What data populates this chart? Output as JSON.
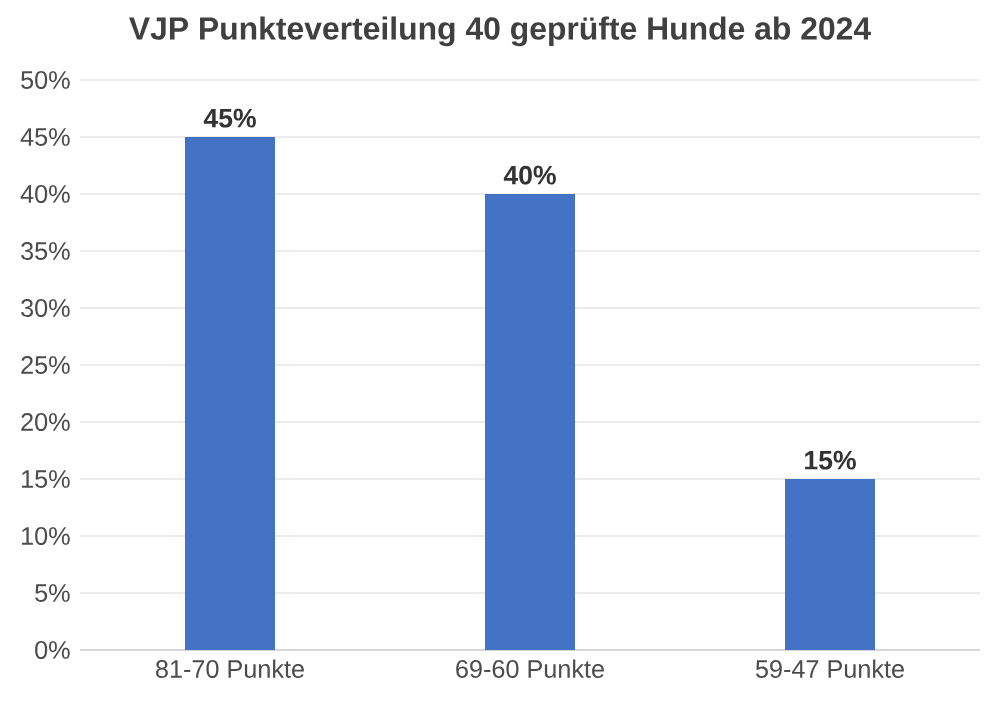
{
  "chart_data": {
    "type": "bar",
    "title": "VJP Punkteverteilung 40 geprüfte Hunde ab 2024",
    "categories": [
      "81-70 Punkte",
      "69-60 Punkte",
      "59-47 Punkte"
    ],
    "values": [
      45,
      40,
      15
    ],
    "value_labels": [
      "45%",
      "40%",
      "15%"
    ],
    "color": "#4472c4",
    "ylim": [
      0,
      50
    ],
    "yticks": [
      {
        "value": 0,
        "label": "0%"
      },
      {
        "value": 5,
        "label": "5%"
      },
      {
        "value": 10,
        "label": "10%"
      },
      {
        "value": 15,
        "label": "15%"
      },
      {
        "value": 20,
        "label": "20%"
      },
      {
        "value": 25,
        "label": "25%"
      },
      {
        "value": 30,
        "label": "30%"
      },
      {
        "value": 35,
        "label": "35%"
      },
      {
        "value": 40,
        "label": "40%"
      },
      {
        "value": 45,
        "label": "45%"
      },
      {
        "value": 50,
        "label": "50%"
      }
    ],
    "grid": "y"
  }
}
